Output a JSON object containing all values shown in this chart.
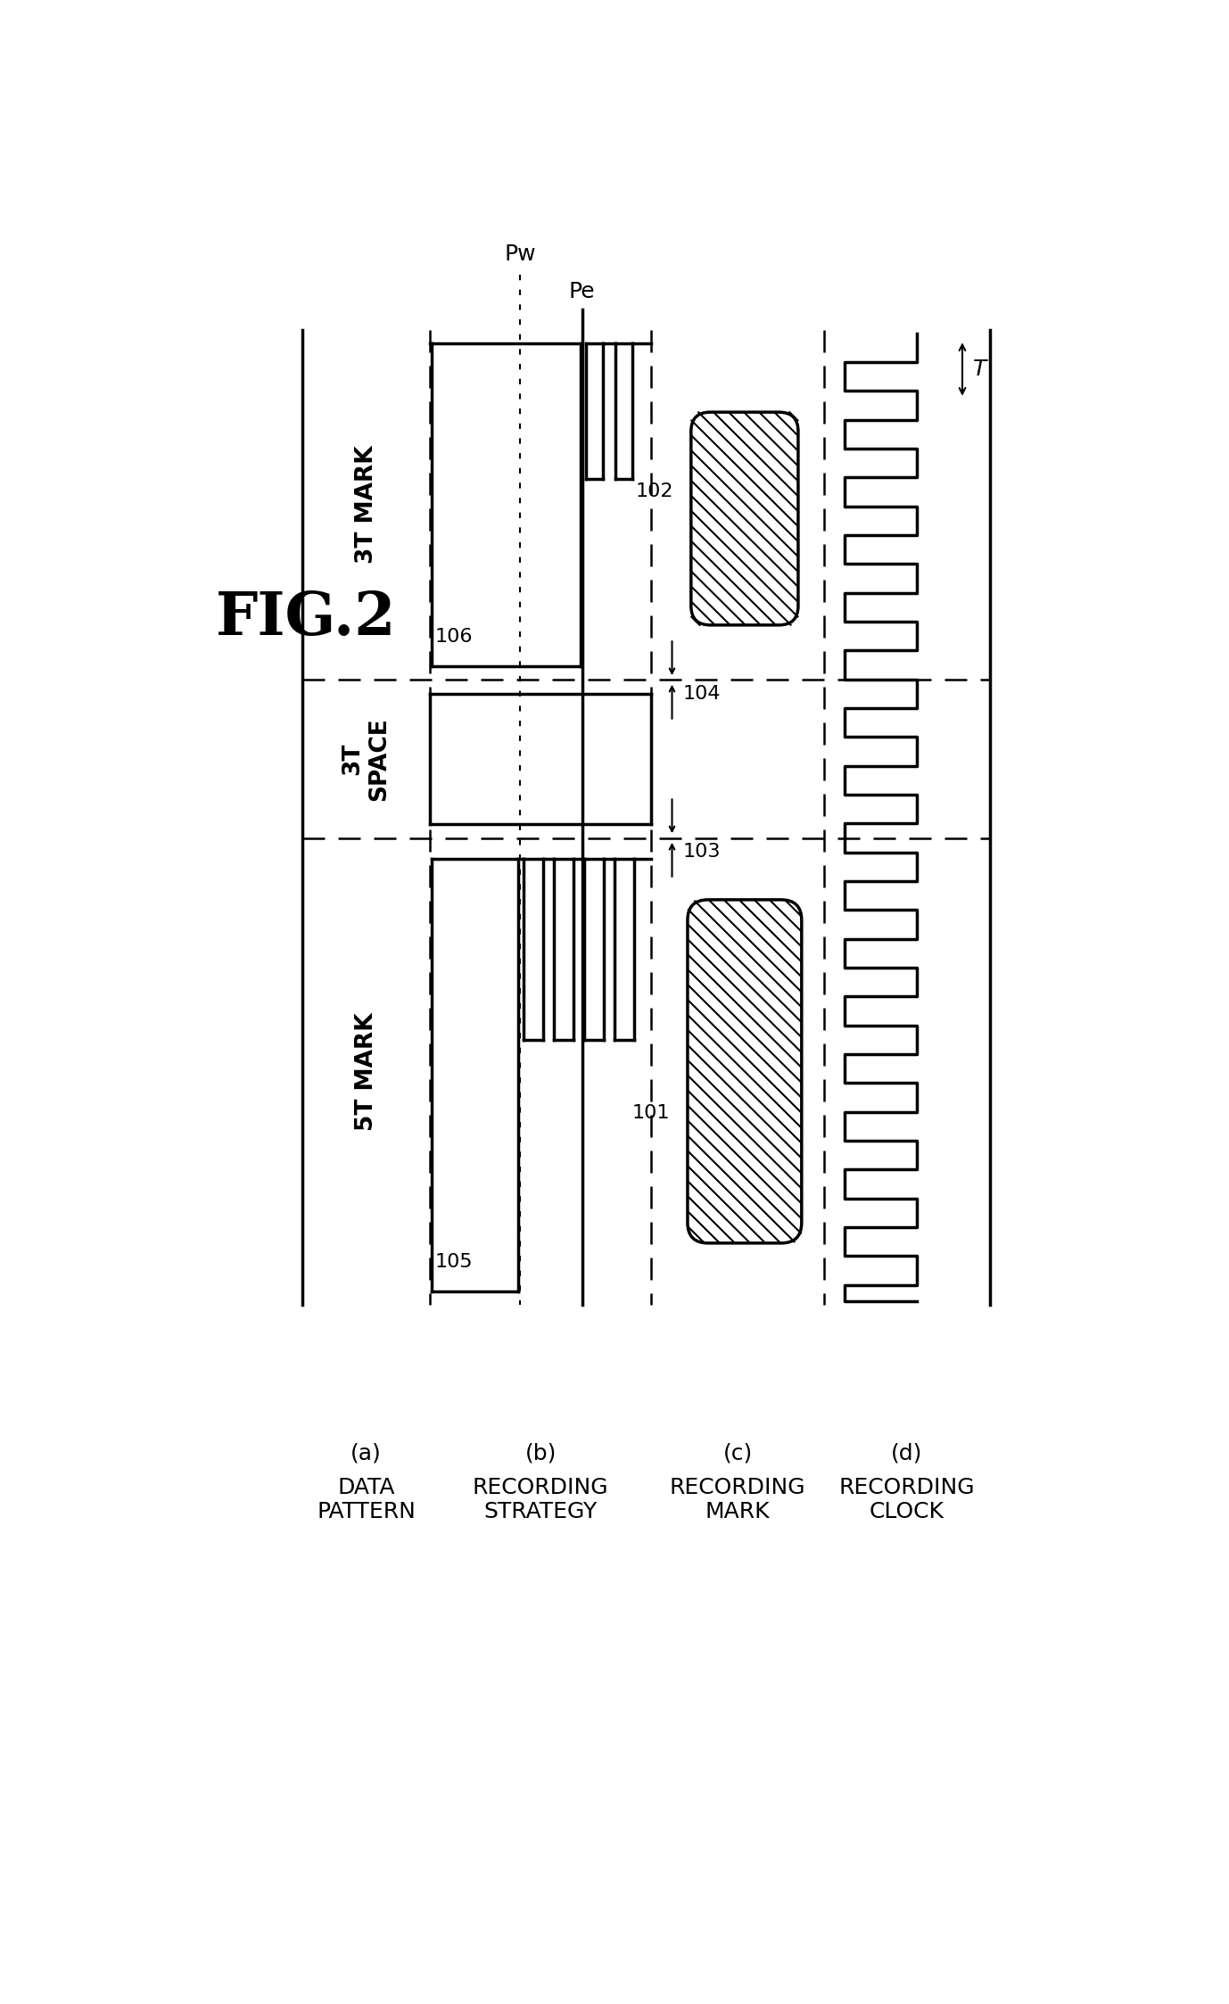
{
  "background_color": "#ffffff",
  "text_color": "#000000",
  "fig_label": "FIG.2",
  "section_labels": [
    "3T MARK",
    "3T SPACE",
    "5T MARK"
  ],
  "col_labels_letter": [
    "(a)",
    "(b)",
    "(c)",
    "(d)"
  ],
  "col_labels_text": [
    "DATA\nPATTERN",
    "RECORDING\nSTRATEGY",
    "RECORDING\nMARK",
    "RECORDING\nCLOCK"
  ],
  "pw_label": "Pw",
  "pe_label": "Pe",
  "T_label": "T",
  "ref_numbers": [
    "101",
    "102",
    "103",
    "104",
    "105",
    "106"
  ],
  "lw_main": 2.5,
  "lw_dashed": 1.8,
  "lw_thin": 1.5
}
